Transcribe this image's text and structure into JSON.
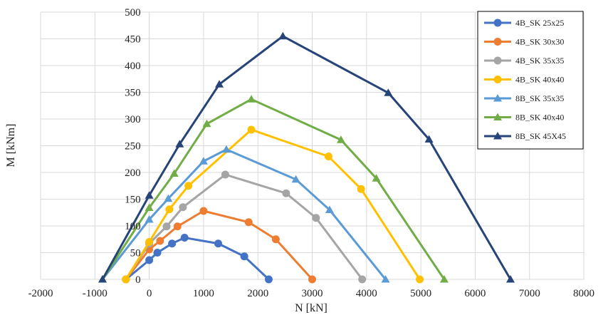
{
  "chart_data": {
    "type": "line",
    "title": "",
    "xlabel": "N [kN]",
    "ylabel": "M [kNm]",
    "xlim": [
      -2000,
      8000
    ],
    "ylim": [
      0,
      500
    ],
    "xticks": [
      -2000,
      -1000,
      0,
      1000,
      2000,
      3000,
      4000,
      5000,
      6000,
      7000,
      8000
    ],
    "yticks": [
      0,
      50,
      100,
      150,
      200,
      250,
      300,
      350,
      400,
      450,
      500
    ],
    "grid": true,
    "legend_position": "top-right",
    "series": [
      {
        "name": "4B_SK 25x25",
        "color": "#4472c4",
        "marker": "circle",
        "points": [
          [
            -430,
            0
          ],
          [
            0,
            36
          ],
          [
            150,
            50
          ],
          [
            420,
            67
          ],
          [
            650,
            78
          ],
          [
            1270,
            67
          ],
          [
            1750,
            43
          ],
          [
            2200,
            0
          ]
        ]
      },
      {
        "name": "4B_SK 30x30",
        "color": "#ed7d31",
        "marker": "circle",
        "points": [
          [
            -430,
            0
          ],
          [
            0,
            56
          ],
          [
            200,
            72
          ],
          [
            520,
            99
          ],
          [
            1000,
            128
          ],
          [
            1830,
            107
          ],
          [
            2330,
            75
          ],
          [
            3000,
            0
          ]
        ]
      },
      {
        "name": "4B_SK 35x35",
        "color": "#a5a5a5",
        "marker": "circle",
        "points": [
          [
            -430,
            0
          ],
          [
            0,
            67
          ],
          [
            320,
            99
          ],
          [
            620,
            135
          ],
          [
            1400,
            196
          ],
          [
            2520,
            161
          ],
          [
            3070,
            115
          ],
          [
            3920,
            0
          ]
        ]
      },
      {
        "name": "4B_SK 40x40",
        "color": "#ffc000",
        "marker": "circle",
        "points": [
          [
            -430,
            0
          ],
          [
            0,
            70
          ],
          [
            370,
            131
          ],
          [
            720,
            175
          ],
          [
            1880,
            280
          ],
          [
            3300,
            230
          ],
          [
            3900,
            169
          ],
          [
            4980,
            0
          ]
        ]
      },
      {
        "name": "8B_SK 35x35",
        "color": "#5b9bd5",
        "marker": "triangle",
        "points": [
          [
            -860,
            0
          ],
          [
            0,
            112
          ],
          [
            350,
            151
          ],
          [
            1000,
            221
          ],
          [
            1420,
            243
          ],
          [
            2700,
            187
          ],
          [
            3320,
            130
          ],
          [
            4350,
            0
          ]
        ]
      },
      {
        "name": "8B_SK 40x40",
        "color": "#70ad47",
        "marker": "triangle",
        "points": [
          [
            -860,
            0
          ],
          [
            0,
            134
          ],
          [
            460,
            198
          ],
          [
            1060,
            291
          ],
          [
            1880,
            337
          ],
          [
            3530,
            261
          ],
          [
            4180,
            189
          ],
          [
            5430,
            0
          ]
        ]
      },
      {
        "name": "8B_SK 45X45",
        "color": "#264478",
        "marker": "triangle",
        "points": [
          [
            -860,
            0
          ],
          [
            0,
            157
          ],
          [
            560,
            253
          ],
          [
            1290,
            365
          ],
          [
            2460,
            455
          ],
          [
            4400,
            349
          ],
          [
            5150,
            262
          ],
          [
            6650,
            0
          ]
        ]
      }
    ]
  }
}
